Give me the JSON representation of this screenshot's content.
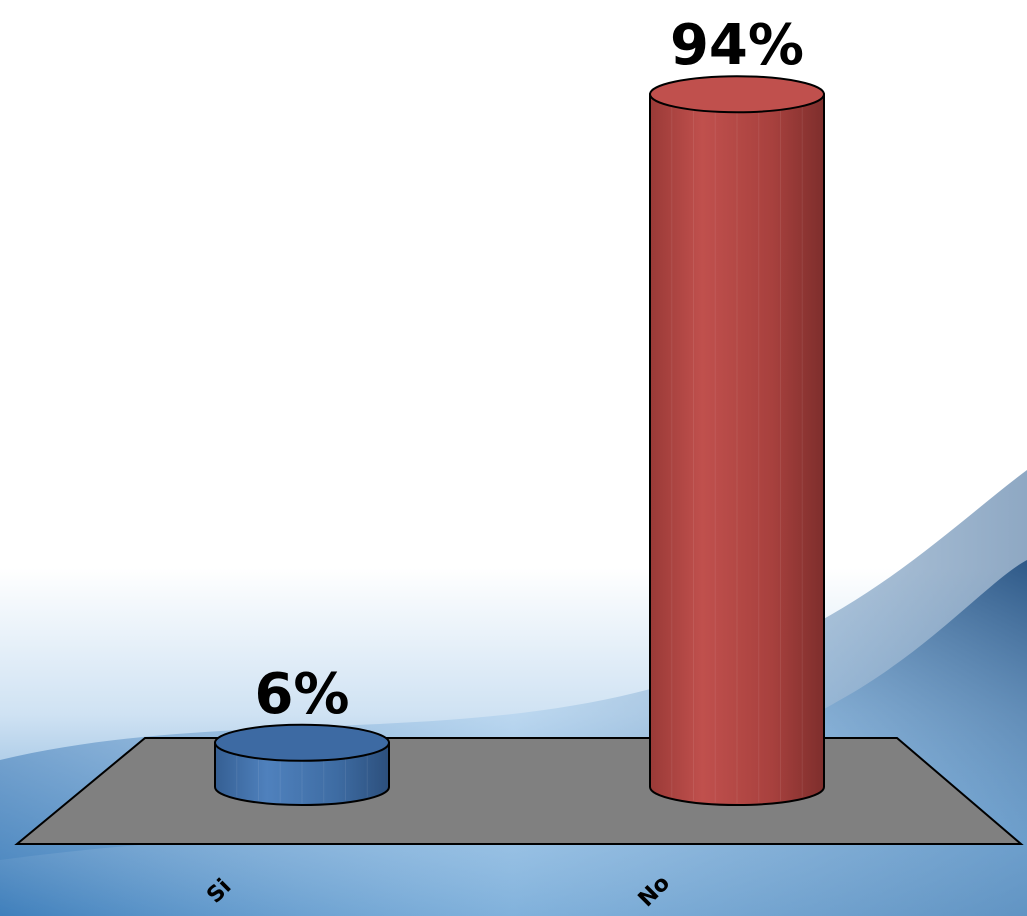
{
  "chart_data": {
    "type": "bar",
    "style": "3d-cylinder",
    "categories": [
      "Si",
      "No"
    ],
    "values": [
      6,
      94
    ],
    "data_labels": [
      "6%",
      "94%"
    ],
    "ylim": [
      0,
      100
    ],
    "unit": "%",
    "grid": false,
    "legend": "none",
    "colors": {
      "Si": "#4F81BD",
      "No": "#C0504D",
      "floor": "#808080"
    }
  }
}
